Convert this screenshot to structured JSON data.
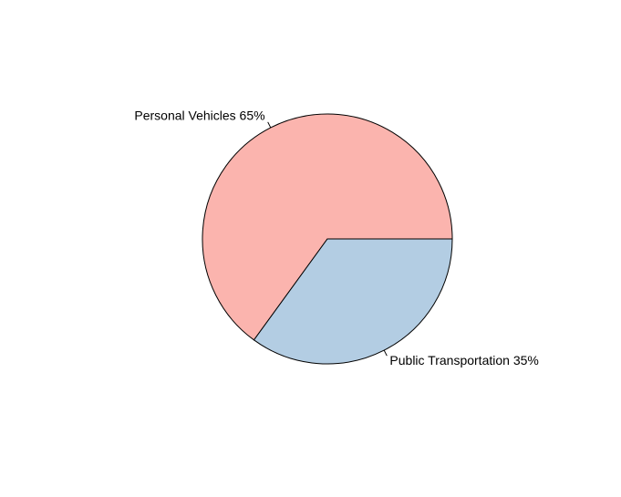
{
  "chart_data": {
    "type": "pie",
    "slices": [
      {
        "label": "Personal Vehicles 65%",
        "value": 65,
        "color": "#FBB4AE"
      },
      {
        "label": "Public Transportation 35%",
        "value": 35,
        "color": "#B3CDE3"
      }
    ],
    "start_angle_deg": 0,
    "direction": "counterclockwise",
    "border_color": "#000000"
  }
}
